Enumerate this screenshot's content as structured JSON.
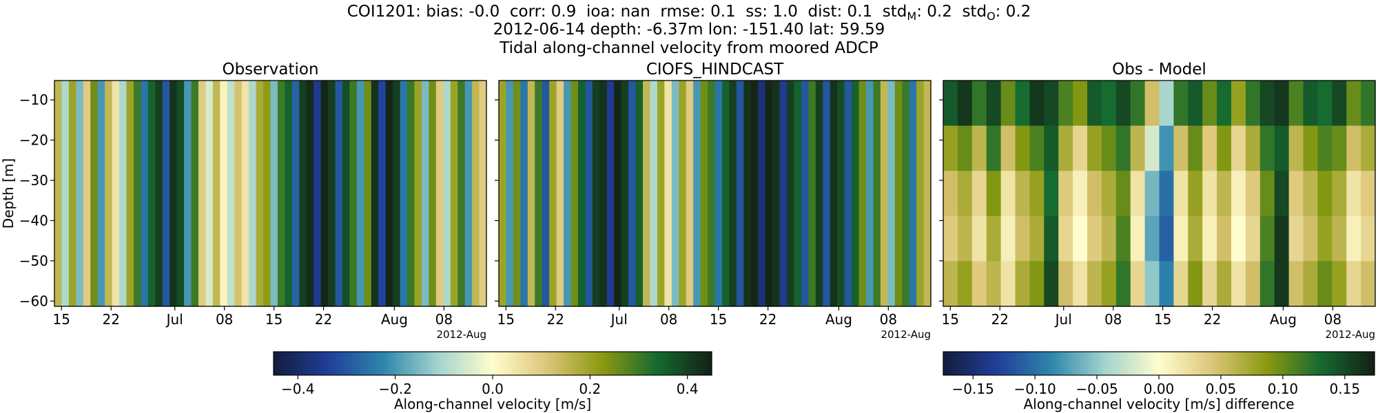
{
  "suptitle": [
    [
      "COI1201: bias: -0.0  corr: 0.9  ioa: nan  rmse: 0.1  ss: 1.0  dist: 0.1  std",
      "M",
      ": 0.2  std",
      "O",
      ": 0.2"
    ],
    [
      "2012-06-14 depth: -6.37m lon: -151.40 lat: 59.59"
    ],
    [
      "Tidal along-channel velocity from moored ADCP"
    ]
  ],
  "colorbars": [
    {
      "label": "Along-channel velocity [m/s]",
      "clim": [
        -0.45,
        0.45
      ],
      "ticks": [
        {
          "value": -0.4,
          "label": "−0.4"
        },
        {
          "value": -0.2,
          "label": "−0.2"
        },
        {
          "value": 0,
          "label": "0.0"
        },
        0.2,
        0.4
      ],
      "colormap": [
        "#111d3c",
        "#213e9a",
        "#2d86ad",
        "#a3d4cd",
        "#fffdcd",
        "#dcc577",
        "#8a9a10",
        "#156a30",
        "#151f14"
      ]
    },
    {
      "label": "Along-channel velocity [m/s] difference",
      "clim": [
        -0.174,
        0.174
      ],
      "ticks": [
        {
          "value": -0.15,
          "label": "−0.15"
        },
        {
          "value": -0.1,
          "label": "−0.10"
        },
        {
          "value": -0.05,
          "label": "−0.05"
        },
        {
          "value": 0,
          "label": "0.00"
        },
        0.05,
        {
          "value": 0.1,
          "label": "0.10"
        },
        0.15
      ],
      "colormap": [
        "#111d3c",
        "#213e9a",
        "#2d86ad",
        "#a3d4cd",
        "#fffdcd",
        "#dcc577",
        "#8a9a10",
        "#156a30",
        "#151f14"
      ]
    }
  ],
  "chart_data": [
    {
      "type": "heatmap",
      "title": "Observation",
      "ylabel": "Depth [m]",
      "x_offset_label": "2012-Aug",
      "xlim": [
        "2012-06-14",
        "2012-08-14"
      ],
      "xticks": [
        {
          "value": "2012-06-15",
          "label": "15"
        },
        {
          "value": "2012-06-22",
          "label": "22"
        },
        {
          "value": "2012-07-01",
          "label": "Jul"
        },
        {
          "value": "2012-07-08",
          "label": "08"
        },
        {
          "value": "2012-07-15",
          "label": "15"
        },
        {
          "value": "2012-07-22",
          "label": "22"
        },
        {
          "value": "2012-08-01",
          "label": "Aug"
        },
        {
          "value": "2012-08-08",
          "label": "08"
        }
      ],
      "ylim": [
        -61.3,
        -5.2
      ],
      "yticks": [
        {
          "value": -10,
          "label": "−10"
        },
        {
          "value": -20,
          "label": "−20"
        },
        {
          "value": -30,
          "label": "−30"
        },
        {
          "value": -40,
          "label": "−40"
        },
        {
          "value": -50,
          "label": "−50"
        },
        {
          "value": -60,
          "label": "−60"
        }
      ],
      "values": [
        [
          0.15,
          -0.1,
          0.2,
          -0.15,
          0.1,
          0.25,
          -0.2,
          0.15,
          0.05,
          -0.1,
          0.2,
          0.3,
          -0.25,
          0.35,
          0.4,
          -0.3,
          0.42,
          0.38,
          -0.2,
          0.3,
          0.1,
          -0.05,
          0.15,
          0.02,
          -0.08,
          0.12,
          0.05,
          -0.1,
          0.18,
          0.22,
          -0.15,
          0.3,
          0.35,
          -0.28,
          0.4,
          0.43,
          -0.35,
          0.44,
          0.4,
          -0.3,
          0.38,
          0.3,
          -0.2,
          0.25,
          0.42,
          -0.33,
          0.44,
          0.4,
          -0.25,
          0.3,
          0.2,
          -0.15,
          0.25,
          0.1,
          -0.1,
          0.2,
          0.3,
          -0.2,
          0.15,
          0.1
        ]
      ]
    },
    {
      "type": "heatmap",
      "title": "CIOFS_HINDCAST",
      "x_offset_label": "2012-Aug",
      "xlim": [
        "2012-06-14",
        "2012-08-14"
      ],
      "xticks": [
        {
          "value": "2012-06-15",
          "label": "15"
        },
        {
          "value": "2012-06-22",
          "label": "22"
        },
        {
          "value": "2012-07-01",
          "label": "Jul"
        },
        {
          "value": "2012-07-08",
          "label": "08"
        },
        {
          "value": "2012-07-15",
          "label": "15"
        },
        {
          "value": "2012-07-22",
          "label": "22"
        },
        {
          "value": "2012-08-01",
          "label": "Aug"
        },
        {
          "value": "2012-08-08",
          "label": "08"
        }
      ],
      "ylim": [
        -61.3,
        -5.2
      ],
      "values": [
        [
          0.2,
          -0.2,
          0.25,
          -0.25,
          0.15,
          0.3,
          -0.3,
          0.2,
          0.1,
          -0.2,
          0.25,
          0.35,
          -0.3,
          0.4,
          0.42,
          -0.35,
          0.44,
          0.4,
          -0.3,
          0.35,
          0.15,
          -0.1,
          0.2,
          0.05,
          -0.15,
          0.2,
          0.1,
          -0.2,
          0.25,
          0.3,
          -0.25,
          0.35,
          0.4,
          -0.3,
          0.42,
          0.44,
          -0.38,
          0.44,
          0.42,
          -0.35,
          0.4,
          0.35,
          -0.3,
          0.3,
          0.4,
          -0.3,
          0.42,
          0.38,
          -0.3,
          0.35,
          0.25,
          -0.2,
          0.3,
          0.15,
          -0.15,
          0.25,
          0.3,
          -0.25,
          0.2,
          0.15
        ]
      ]
    },
    {
      "type": "heatmap",
      "title": "Obs - Model",
      "x_offset_label": "2012-Aug",
      "xlim": [
        "2012-06-14",
        "2012-08-14"
      ],
      "xticks": [
        {
          "value": "2012-06-15",
          "label": "15"
        },
        {
          "value": "2012-06-22",
          "label": "22"
        },
        {
          "value": "2012-07-01",
          "label": "Jul"
        },
        {
          "value": "2012-07-08",
          "label": "08"
        },
        {
          "value": "2012-07-15",
          "label": "15"
        },
        {
          "value": "2012-07-22",
          "label": "22"
        },
        {
          "value": "2012-08-01",
          "label": "Aug"
        },
        {
          "value": "2012-08-08",
          "label": "08"
        }
      ],
      "ylim": [
        -61.3,
        -5.2
      ],
      "values": [
        [
          0.14,
          0.16,
          0.12,
          0.15,
          0.1,
          0.13,
          0.16,
          0.15,
          0.11,
          0.09,
          0.14,
          0.13,
          0.15,
          0.12,
          0.05,
          -0.04,
          0.12,
          0.14,
          0.1,
          0.13,
          0.08,
          0.12,
          0.15,
          0.16,
          0.11,
          0.14,
          0.13,
          0.15,
          0.1,
          0.12
        ],
        [
          0.08,
          0.1,
          0.06,
          0.12,
          0.05,
          0.09,
          0.11,
          0.14,
          0.07,
          0.03,
          0.08,
          0.1,
          0.12,
          0.06,
          -0.02,
          -0.08,
          0.05,
          0.1,
          0.04,
          0.09,
          0.03,
          0.07,
          0.12,
          0.14,
          0.06,
          0.09,
          0.11,
          0.1,
          0.05,
          0.07
        ],
        [
          0.05,
          0.07,
          0.03,
          0.09,
          0.02,
          0.06,
          0.08,
          0.13,
          0.04,
          0.01,
          0.05,
          0.07,
          0.1,
          0.02,
          -0.06,
          -0.1,
          0.02,
          0.08,
          0.02,
          0.06,
          0.01,
          0.04,
          0.1,
          0.15,
          0.04,
          0.06,
          0.09,
          0.07,
          0.02,
          0.04
        ],
        [
          0.04,
          0.06,
          0.02,
          0.07,
          0.01,
          0.05,
          0.07,
          0.14,
          0.03,
          0.0,
          0.04,
          0.06,
          0.11,
          0.01,
          -0.07,
          -0.11,
          0.01,
          0.07,
          0.01,
          0.05,
          0.0,
          0.03,
          0.11,
          0.16,
          0.03,
          0.05,
          0.08,
          0.06,
          0.01,
          0.03
        ],
        [
          0.06,
          0.08,
          0.04,
          0.06,
          0.02,
          0.07,
          0.09,
          0.15,
          0.05,
          0.02,
          0.06,
          0.08,
          0.12,
          0.03,
          -0.05,
          -0.09,
          0.03,
          0.09,
          0.03,
          0.07,
          0.02,
          0.05,
          0.12,
          0.16,
          0.05,
          0.07,
          0.1,
          0.08,
          0.03,
          0.05
        ]
      ]
    }
  ]
}
